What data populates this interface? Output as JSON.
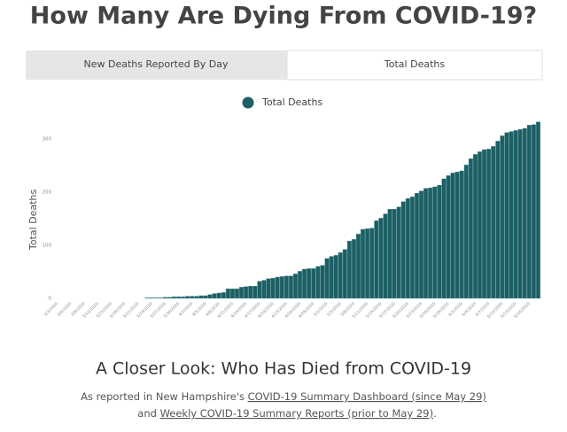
{
  "page": {
    "title": "How Many Are Dying From COVID-19?",
    "tabs": [
      "New Deaths Reported By Day",
      "Total Deaths"
    ],
    "heading": "A Closer Look: Who Has Died from COVID-19",
    "note_line1_text": "As reported in New Hampshire's ",
    "note_line1_link": "COVID-19 Summary Dashboard (since May 29)",
    "note_line2_text": "and ",
    "note_line2_link": "Weekly COVID-19 Summary Reports (prior to May 29)",
    "note_line2_end": "."
  },
  "chart_data": {
    "type": "bar",
    "y_label": "Total Deaths",
    "series": [
      {
        "name": "Total Deaths",
        "color": "#1d5f64",
        "values": [
          0,
          0,
          0,
          0,
          0,
          0,
          0,
          0,
          0,
          0,
          0,
          0,
          0,
          0,
          0,
          0,
          0,
          0,
          0,
          0,
          1,
          1,
          1,
          1,
          2,
          2,
          3,
          3,
          3,
          4,
          4,
          4,
          5,
          5,
          7,
          9,
          10,
          11,
          18,
          18,
          18,
          21,
          22,
          23,
          23,
          32,
          34,
          37,
          38,
          40,
          41,
          42,
          42,
          46,
          51,
          55,
          56,
          56,
          60,
          62,
          75,
          79,
          81,
          86,
          92,
          108,
          111,
          121,
          130,
          131,
          132,
          146,
          151,
          159,
          168,
          168,
          172,
          182,
          188,
          191,
          198,
          202,
          207,
          208,
          210,
          213,
          225,
          231,
          236,
          238,
          240,
          251,
          263,
          271,
          276,
          280,
          281,
          286,
          296,
          306,
          312,
          314,
          316,
          318,
          320,
          326,
          327,
          332
        ]
      }
    ],
    "categories": [
      "3/3/2020",
      null,
      null,
      "3/6/2020",
      null,
      null,
      "3/9/2020",
      null,
      null,
      "3/12/2020",
      null,
      null,
      "3/15/2020",
      null,
      null,
      "3/18/2020",
      null,
      null,
      "3/21/2020",
      null,
      null,
      "3/24/2020",
      null,
      null,
      "3/27/2020",
      null,
      null,
      "3/30/2020",
      null,
      null,
      "4/2/2020",
      null,
      null,
      "4/5/2020",
      null,
      null,
      "4/8/2020",
      null,
      null,
      "4/11/2020",
      null,
      null,
      "4/14/2020",
      null,
      null,
      "4/17/2020",
      null,
      null,
      "4/20/2020",
      null,
      null,
      "4/23/2020",
      null,
      null,
      "4/26/2020",
      null,
      null,
      "4/29/2020",
      null,
      null,
      "5/2/2020",
      null,
      null,
      "5/5/2020",
      null,
      null,
      "5/8/2020",
      null,
      null,
      "5/11/2020",
      null,
      null,
      "5/14/2020",
      null,
      null,
      "5/17/2020",
      null,
      null,
      "5/20/2020",
      null,
      null,
      "5/23/2020",
      null,
      null,
      "5/26/2020",
      null,
      null,
      "5/29/2020",
      null,
      null,
      "6/1/2020",
      null,
      null,
      "6/4/2020",
      null,
      null,
      "6/7/2020",
      null,
      null,
      "6/10/2020",
      null,
      null,
      "6/13/2020",
      null,
      null,
      "6/16/2020",
      null,
      null
    ],
    "ylim": [
      0,
      340
    ],
    "yticks": [
      0,
      100,
      200,
      300
    ],
    "grid": false,
    "legend": "top"
  }
}
